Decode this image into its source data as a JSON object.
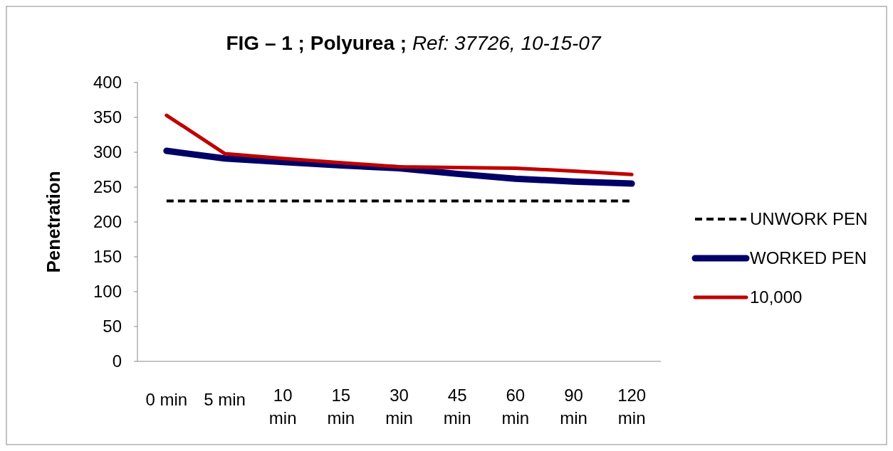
{
  "chart_data": {
    "type": "line",
    "title": "FIG – 1 ; Polyurea ; Ref: 37726, 10-15-07",
    "ylabel": "Penetration",
    "categories": [
      "0 min",
      "5 min",
      "10 min",
      "15 min",
      "30 min",
      "45 min",
      "60 min",
      "90 min",
      "120 min"
    ],
    "series": [
      {
        "name": "UNWORK PEN",
        "color": "#000000",
        "line_style": "dashed",
        "values": [
          230,
          230,
          230,
          230,
          230,
          230,
          230,
          230,
          230
        ]
      },
      {
        "name": "WORKED PEN",
        "color": "#000066",
        "values": [
          302,
          291,
          286,
          281,
          277,
          269,
          262,
          258,
          255
        ]
      },
      {
        "name": "10,000",
        "color": "#c00000",
        "values": [
          353,
          298,
          291,
          285,
          279,
          278,
          277,
          273,
          268
        ]
      }
    ],
    "ylim": [
      0,
      400
    ],
    "yticks": [
      0,
      50,
      100,
      150,
      200,
      250,
      300,
      350,
      400
    ],
    "grid": false,
    "legend": "right"
  }
}
